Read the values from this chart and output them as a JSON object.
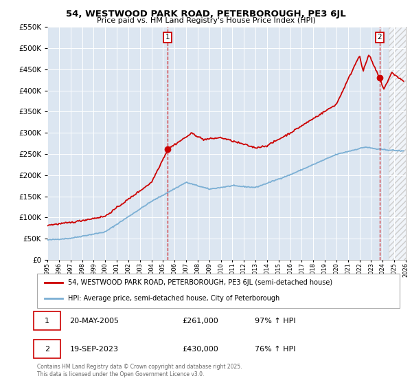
{
  "title": "54, WESTWOOD PARK ROAD, PETERBOROUGH, PE3 6JL",
  "subtitle": "Price paid vs. HM Land Registry's House Price Index (HPI)",
  "plot_bg_color": "#dce6f1",
  "red_line_color": "#cc0000",
  "blue_line_color": "#7bafd4",
  "marker1_year": 2005.38,
  "marker1_price": 261000,
  "marker2_year": 2023.72,
  "marker2_price": 430000,
  "legend1": "54, WESTWOOD PARK ROAD, PETERBOROUGH, PE3 6JL (semi-detached house)",
  "legend2": "HPI: Average price, semi-detached house, City of Peterborough",
  "footer": "Contains HM Land Registry data © Crown copyright and database right 2025.\nThis data is licensed under the Open Government Licence v3.0.",
  "xmin": 1995,
  "xmax": 2026,
  "ymin": 0,
  "ymax": 550000,
  "hatch_start": 2024.5
}
